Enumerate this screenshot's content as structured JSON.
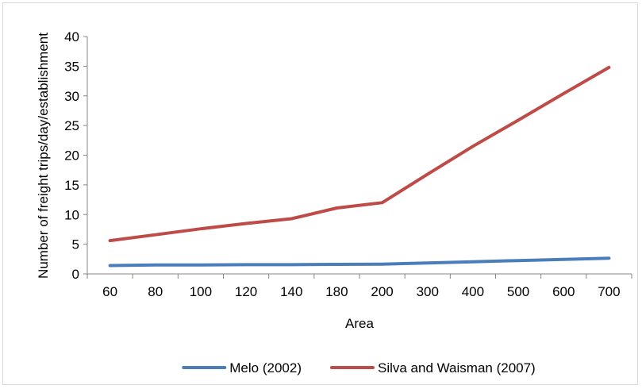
{
  "chart_data": {
    "type": "line",
    "categories": [
      "60",
      "80",
      "100",
      "120",
      "140",
      "180",
      "200",
      "300",
      "400",
      "500",
      "600",
      "700"
    ],
    "series": [
      {
        "name": "Melo (2002)",
        "color": "#4a7ebb",
        "values": [
          1.4,
          1.5,
          1.5,
          1.55,
          1.55,
          1.6,
          1.65,
          1.85,
          2.05,
          2.25,
          2.45,
          2.65
        ]
      },
      {
        "name": "Silva and Waisman (2007)",
        "color": "#be4b48",
        "values": [
          5.6,
          6.6,
          7.6,
          8.5,
          9.3,
          11.1,
          12.0,
          16.8,
          21.5,
          25.9,
          30.4,
          34.8
        ]
      }
    ],
    "xlabel": "Area",
    "ylabel": "Number of freight trips/day/establishment",
    "ylim": [
      0,
      40
    ],
    "yticks": [
      0,
      5,
      10,
      15,
      20,
      25,
      30,
      35,
      40
    ],
    "grid": false,
    "legend_position": "bottom"
  }
}
